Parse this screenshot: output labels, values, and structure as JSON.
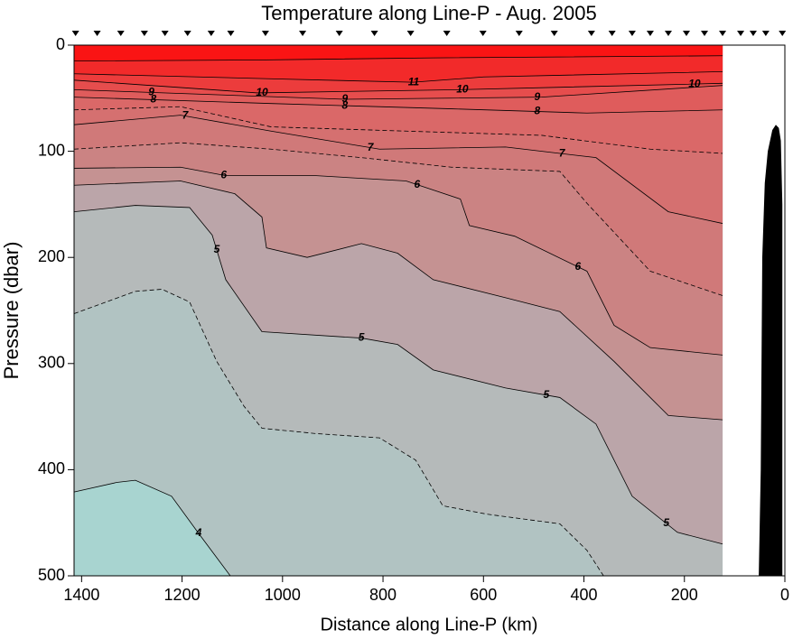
{
  "chart_data": {
    "type": "contour",
    "title": "Temperature along Line-P - Aug. 2005",
    "x_label": "Distance along Line-P (km)",
    "y_label": "Pressure (dbar)",
    "xlim": [
      1415,
      0
    ],
    "ylim": [
      0,
      500
    ],
    "xticks": [
      1400,
      1200,
      1000,
      800,
      600,
      400,
      200,
      0
    ],
    "yticks": [
      0,
      100,
      200,
      300,
      400,
      500
    ],
    "base_color": "#a8d4d0",
    "contours": [
      {
        "level": 4,
        "dashed": false,
        "color": "#b1c3c2",
        "x": [
          1415,
          1330,
          1293,
          1221,
          1167,
          1104
        ],
        "y": [
          421,
          412,
          410,
          425,
          460,
          500
        ]
      },
      {
        "level": 4.5,
        "dashed": true,
        "color": "#b5baba",
        "x": [
          1415,
          1293,
          1240,
          1185,
          1131,
          1077,
          1041,
          933,
          807,
          735,
          681,
          592,
          448,
          394,
          361
        ],
        "y": [
          253,
          232,
          230,
          242,
          298,
          340,
          361,
          366,
          370,
          391,
          434,
          442,
          451,
          476,
          500
        ]
      },
      {
        "level": 5,
        "dashed": false,
        "color": "#bba5a9",
        "x": [
          1415,
          1293,
          1185,
          1140,
          1113,
          1041,
          843,
          771,
          700,
          556,
          448,
          376,
          304,
          214,
          124
        ],
        "y": [
          157,
          151,
          153,
          179,
          221,
          270,
          276,
          282,
          306,
          323,
          332,
          357,
          425,
          459,
          470
        ]
      },
      {
        "level": 5.5,
        "dashed": false,
        "color": "#c59292",
        "x": [
          1415,
          1203,
          1095,
          1041,
          1032,
          951,
          843,
          771,
          700,
          556,
          448,
          340,
          232,
          124
        ],
        "y": [
          132,
          128,
          140,
          162,
          191,
          200,
          187,
          196,
          221,
          238,
          251,
          298,
          349,
          353
        ]
      },
      {
        "level": 6,
        "dashed": false,
        "color": "#cb8383",
        "x": [
          1415,
          1203,
          1113,
          933,
          754,
          646,
          628,
          538,
          394,
          340,
          268,
          124
        ],
        "y": [
          116,
          115,
          123,
          123,
          128,
          145,
          170,
          180,
          213,
          264,
          285,
          292
        ]
      },
      {
        "level": 6.5,
        "dashed": true,
        "color": "#d07979",
        "x": [
          1415,
          1203,
          1023,
          843,
          664,
          448,
          394,
          268,
          124
        ],
        "y": [
          98,
          92,
          98,
          106,
          115,
          119,
          149,
          213,
          236
        ]
      },
      {
        "level": 7,
        "dashed": false,
        "color": "#d57070",
        "x": [
          1415,
          1203,
          1023,
          807,
          556,
          376,
          232,
          124
        ],
        "y": [
          75,
          66,
          81,
          98,
          96,
          106,
          157,
          168
        ]
      },
      {
        "level": 7.5,
        "dashed": true,
        "color": "#da6868",
        "x": [
          1415,
          1203,
          1023,
          754,
          484,
          268,
          124
        ],
        "y": [
          61,
          58,
          77,
          81,
          85,
          98,
          102
        ]
      },
      {
        "level": 8,
        "dashed": false,
        "color": "#df5c5c",
        "x": [
          1415,
          1023,
          664,
          394,
          124
        ],
        "y": [
          49,
          55,
          60,
          64,
          61
        ]
      },
      {
        "level": 9,
        "dashed": false,
        "color": "#e64d4d",
        "x": [
          1415,
          876,
          484,
          124
        ],
        "y": [
          42,
          51,
          49,
          38
        ]
      },
      {
        "level": 10,
        "dashed": false,
        "color": "#ec3c3c",
        "x": [
          1415,
          1050,
          650,
          124
        ],
        "y": [
          33,
          45,
          42,
          36
        ]
      },
      {
        "level": 11,
        "dashed": false,
        "color": "#f22a2a",
        "x": [
          1415,
          1000,
          740,
          600,
          124
        ],
        "y": [
          27,
          32,
          35,
          30,
          25
        ]
      },
      {
        "level": 12,
        "dashed": false,
        "color": "#fa1414",
        "x": [
          1415,
          1050,
          700,
          124
        ],
        "y": [
          15,
          14,
          12,
          10
        ]
      }
    ],
    "stations": [
      1412,
      1369,
      1322,
      1275,
      1234,
      1189,
      1142,
      1103,
      1034,
      960,
      887,
      817,
      745,
      673,
      601,
      529,
      459,
      385,
      344,
      304,
      268,
      232,
      196,
      160,
      124,
      88,
      63,
      38,
      5
    ],
    "bathymetry": {
      "color": "#000000",
      "x": [
        52,
        48,
        45,
        40,
        34,
        25,
        18,
        12,
        8,
        5,
        5
      ],
      "y": [
        500,
        400,
        200,
        130,
        100,
        80,
        75,
        78,
        90,
        150,
        500
      ]
    }
  }
}
